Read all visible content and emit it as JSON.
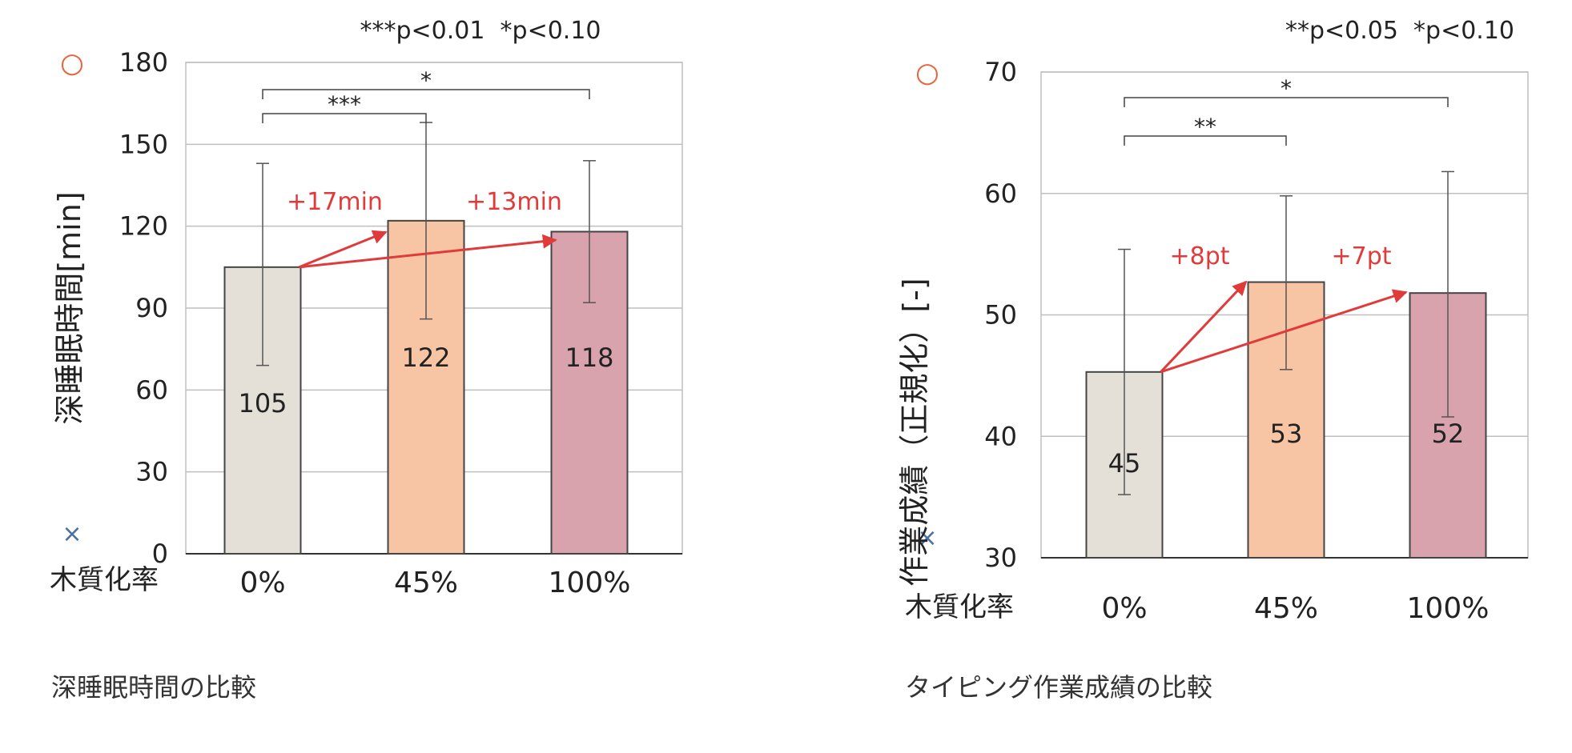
{
  "chart_data": [
    {
      "type": "bar",
      "title": "深睡眠時間の比較",
      "significance_note": "***p<0.01  *p<0.10",
      "xlabel": "木質化率",
      "ylabel": "深睡眠時間[min]",
      "ylim": [
        0,
        180
      ],
      "yticks": [
        "0",
        "30",
        "60",
        "90",
        "120",
        "150",
        "180"
      ],
      "categories": [
        "0%",
        "45%",
        "100%"
      ],
      "values": [
        105,
        122,
        118
      ],
      "value_labels": [
        "105",
        "122",
        "118"
      ],
      "error_low": [
        69,
        86,
        92
      ],
      "error_high": [
        143,
        158,
        144
      ],
      "bar_colors": [
        "#e4e0d8",
        "#f8c5a4",
        "#d8a3ac"
      ],
      "axis_marks": {
        "top": "○",
        "bottom": "×"
      },
      "differences": [
        {
          "from": 0,
          "to": 1,
          "label": "+17min"
        },
        {
          "from": 0,
          "to": 2,
          "label": "+13min"
        }
      ],
      "brackets": [
        {
          "from": 0,
          "to": 1,
          "label": "***"
        },
        {
          "from": 0,
          "to": 2,
          "label": "*"
        }
      ],
      "grid": true
    },
    {
      "type": "bar",
      "title": "タイピング作業成績の比較",
      "significance_note": "**p<0.05  *p<0.10",
      "xlabel": "木質化率",
      "ylabel": "作業成績（正規化）[-]",
      "ylim": [
        30,
        70
      ],
      "yticks": [
        "30",
        "40",
        "50",
        "60",
        "70"
      ],
      "categories": [
        "0%",
        "45%",
        "100%"
      ],
      "values": [
        45.3,
        52.7,
        51.8
      ],
      "value_labels": [
        "45",
        "53",
        "52"
      ],
      "error_low": [
        35.2,
        45.5,
        41.6
      ],
      "error_high": [
        55.4,
        59.8,
        61.8
      ],
      "bar_colors": [
        "#e4e0d8",
        "#f8c5a4",
        "#d8a3ac"
      ],
      "axis_marks": {
        "top": "○",
        "bottom": "×"
      },
      "differences": [
        {
          "from": 0,
          "to": 1,
          "label": "+8pt"
        },
        {
          "from": 0,
          "to": 2,
          "label": "+7pt"
        }
      ],
      "brackets": [
        {
          "from": 0,
          "to": 1,
          "label": "**"
        },
        {
          "from": 0,
          "to": 2,
          "label": "*"
        }
      ],
      "grid": true
    }
  ],
  "colors": {
    "annotation": "#e03a3a",
    "circle_mark": "#e8643c",
    "cross_mark": "#4a6fa5",
    "bar_stroke": "#444444",
    "grid": "#bfbfbf"
  }
}
